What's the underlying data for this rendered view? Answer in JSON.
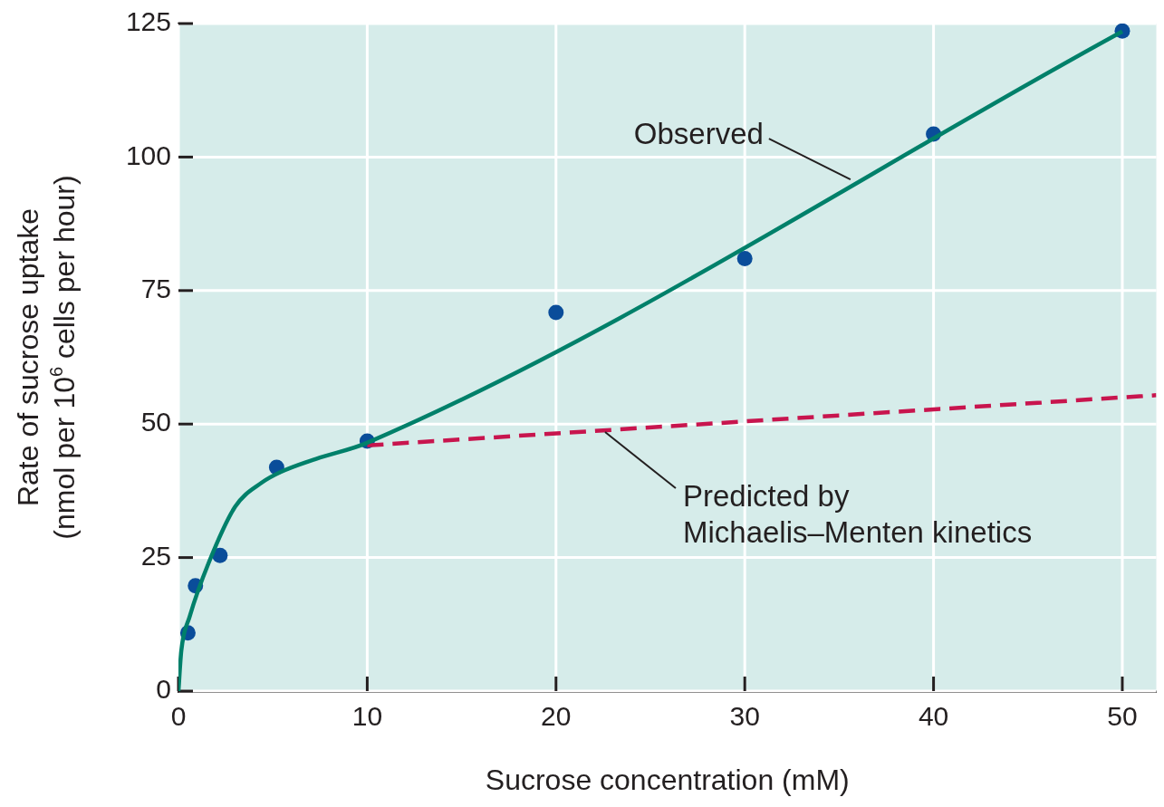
{
  "chart_data": {
    "type": "line",
    "xlabel": "Sucrose concentration (mM)",
    "ylabel": "Rate of sucrose uptake (nmol per 10$^{6}$ cells per hour)",
    "xlim": [
      0,
      51.8
    ],
    "xticks": [
      0,
      10,
      20,
      30,
      40,
      50
    ],
    "ylim": [
      0,
      125
    ],
    "yticks": [
      0,
      25,
      50,
      75,
      100,
      125
    ],
    "grid": true,
    "series": [
      {
        "color": "#00806a",
        "line_style": "solid",
        "marker": "none",
        "x": [
          0,
          0.15,
          0.6,
          1.6,
          3,
          4.4,
          5.4,
          7.3,
          10,
          50
        ],
        "values": [
          0,
          7.5,
          14,
          24,
          34.5,
          39,
          41,
          43.5,
          46.5,
          123.5
        ]
      },
      {
        "color": "#c8154e",
        "line_style": "dashed",
        "marker": "none",
        "x": [
          10,
          51.8
        ],
        "values": [
          46,
          55.4
        ]
      },
      {
        "type": "scatter",
        "color": "#0a4d9a",
        "marker": "circle",
        "x": [
          0.5,
          0.9,
          2.2,
          5.2,
          10,
          20,
          30,
          40,
          50
        ],
        "values": [
          10.9,
          19.7,
          25.4,
          41.9,
          46.8,
          70.9,
          81,
          104.3,
          123.6
        ]
      }
    ],
    "annotations": [
      {
        "text": "Observed",
        "x": 35.6,
        "y": 95.8
      },
      {
        "text": "Predicted by Michaelis–Menten kinetics",
        "x": 22.6,
        "y": 48.5
      }
    ]
  }
}
